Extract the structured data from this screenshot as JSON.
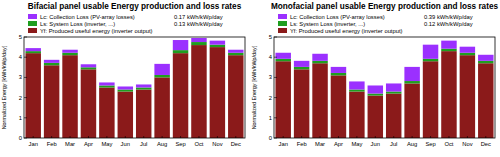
{
  "chart_data": [
    {
      "type": "bar",
      "stacked": true,
      "grid": false,
      "title": "Bifacial panel usable Energy production and loss rates",
      "y_label": "Normalized Energy [kWh/kWp/day]",
      "categories": [
        "Jan",
        "Feb",
        "Mar",
        "Apr",
        "May",
        "Jun",
        "Jul",
        "Aug",
        "Sep",
        "Oct",
        "Nov",
        "Dec"
      ],
      "ylim": [
        0,
        5
      ],
      "yticks": [
        0,
        1,
        2,
        3,
        4,
        5
      ],
      "annotations": [
        "0.17 kWh/kWp/day",
        "0.13 kWh/kWp/day"
      ],
      "series": [
        {
          "name": "Lc: Collection Loss (PV-array losses)",
          "color": "#9b30ff",
          "values": [
            0.15,
            0.15,
            0.15,
            0.15,
            0.15,
            0.15,
            0.15,
            0.55,
            0.5,
            0.2,
            0.2,
            0.15
          ]
        },
        {
          "name": "Ls: System Loss (inverter, ...)",
          "color": "#1f9e1f",
          "values": [
            0.1,
            0.12,
            0.12,
            0.1,
            0.1,
            0.1,
            0.1,
            0.12,
            0.15,
            0.15,
            0.12,
            0.12
          ]
        },
        {
          "name": "Yf: Produced useful energy (inverter output)",
          "color": "#8b1a1a",
          "values": [
            4.2,
            3.6,
            4.1,
            3.4,
            2.5,
            2.3,
            2.4,
            3.0,
            4.2,
            4.6,
            4.5,
            4.1
          ]
        }
      ]
    },
    {
      "type": "bar",
      "stacked": true,
      "grid": false,
      "title": "Monofacial panel usable Energy production and loss rates",
      "y_label": "Normalized Energy [kWh/kWp/day]",
      "categories": [
        "Jan",
        "Feb",
        "Mar",
        "Apr",
        "May",
        "Jun",
        "Jul",
        "Aug",
        "Sep",
        "Oct",
        "Nov",
        "Dec"
      ],
      "ylim": [
        0,
        5
      ],
      "yticks": [
        0,
        1,
        2,
        3,
        4,
        5
      ],
      "annotations": [
        "0.39 kWh/kWp/day",
        "0.12 kWh/kWp/day"
      ],
      "series": [
        {
          "name": "Lc: Collection Loss (PV-array losses)",
          "color": "#9b30ff",
          "values": [
            0.3,
            0.3,
            0.35,
            0.3,
            0.4,
            0.4,
            0.4,
            0.7,
            0.7,
            0.4,
            0.3,
            0.3
          ]
        },
        {
          "name": "Ls: System Loss (inverter, ...)",
          "color": "#1f9e1f",
          "values": [
            0.12,
            0.12,
            0.12,
            0.12,
            0.1,
            0.1,
            0.1,
            0.12,
            0.12,
            0.12,
            0.12,
            0.12
          ]
        },
        {
          "name": "Yf: Produced useful energy (inverter output)",
          "color": "#8b1a1a",
          "values": [
            3.8,
            3.4,
            3.7,
            3.1,
            2.3,
            2.1,
            2.2,
            2.7,
            3.8,
            4.3,
            4.1,
            3.7
          ]
        }
      ]
    }
  ]
}
